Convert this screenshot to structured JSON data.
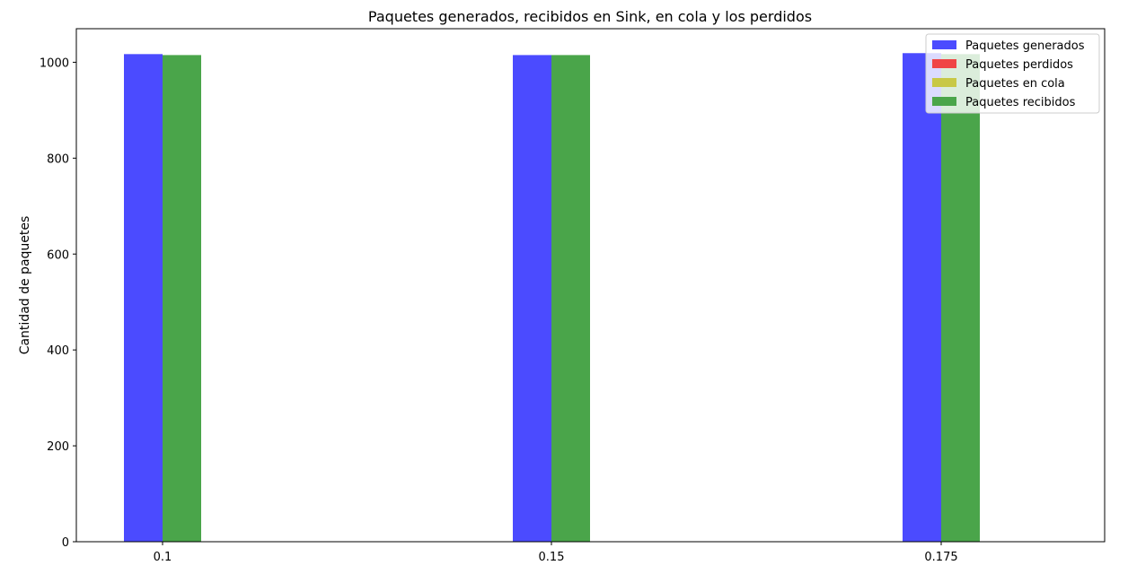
{
  "chart_data": {
    "type": "bar",
    "title": "Paquetes generados, recibidos en Sink, en cola y los perdidos",
    "xlabel": "",
    "ylabel": "Cantidad de paquetes",
    "categories": [
      "0.1",
      "0.15",
      "0.175"
    ],
    "ylim": [
      0,
      1070
    ],
    "yticks": [
      0,
      200,
      400,
      600,
      800,
      1000
    ],
    "grid": false,
    "legend_position": "top-right",
    "series": [
      {
        "name": "Paquetes generados",
        "color": "#4b4bff",
        "values": [
          1017,
          1015,
          1019
        ]
      },
      {
        "name": "Paquetes perdidos",
        "color": "#f04545",
        "values": [
          0,
          0,
          0
        ]
      },
      {
        "name": "Paquetes en cola",
        "color": "#c8c845",
        "values": [
          0,
          0,
          0
        ]
      },
      {
        "name": "Paquetes recibidos",
        "color": "#4aa54a",
        "values": [
          1015,
          1015,
          1017
        ]
      }
    ]
  }
}
